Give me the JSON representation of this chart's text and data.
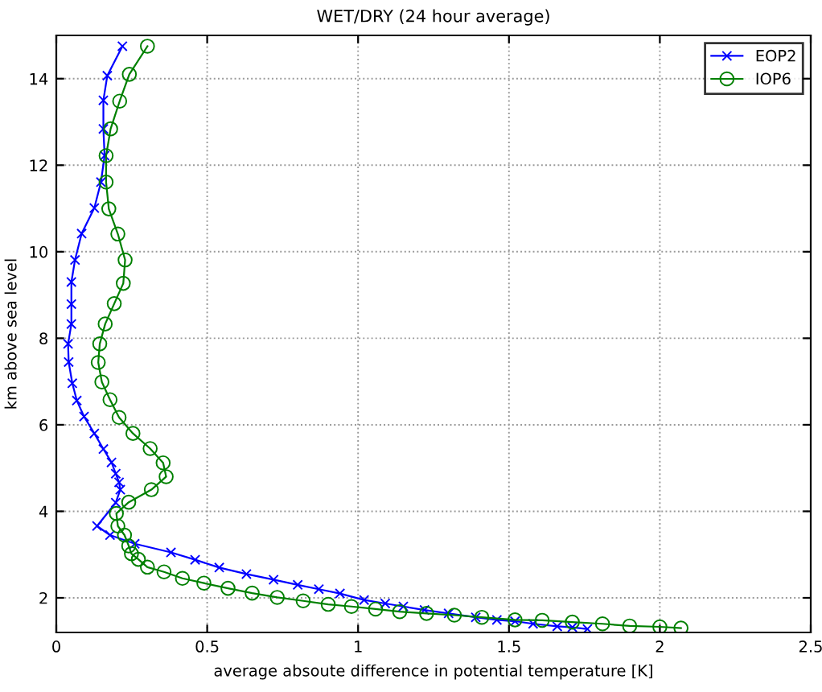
{
  "chart_data": {
    "type": "line",
    "title": "WET/DRY (24 hour average)",
    "xlabel": "average absoute difference in potential temperature [K]",
    "ylabel": "km above sea level",
    "xlim": [
      0,
      2.5
    ],
    "xticks": [
      0,
      0.5,
      1,
      1.5,
      2,
      2.5
    ],
    "ylim": [
      1.2,
      15
    ],
    "yticks": [
      2,
      4,
      6,
      8,
      10,
      12,
      14
    ],
    "grid": true,
    "legend": "top right",
    "series": [
      {
        "name": "EOP2",
        "color": "#0000ff",
        "marker": "cross",
        "x": [
          0.219,
          0.169,
          0.156,
          0.156,
          0.16,
          0.148,
          0.126,
          0.084,
          0.062,
          0.05,
          0.05,
          0.05,
          0.039,
          0.041,
          0.053,
          0.068,
          0.092,
          0.126,
          0.156,
          0.183,
          0.197,
          0.208,
          0.212,
          0.197,
          0.135,
          0.178,
          0.26,
          0.38,
          0.46,
          0.54,
          0.63,
          0.72,
          0.8,
          0.87,
          0.94,
          1.02,
          1.09,
          1.15,
          1.22,
          1.3,
          1.39,
          1.46,
          1.52,
          1.58,
          1.66,
          1.71,
          1.76
        ],
        "values": [
          14.75,
          14.07,
          13.5,
          12.84,
          12.22,
          11.61,
          11.01,
          10.42,
          9.81,
          9.3,
          8.79,
          8.33,
          7.87,
          7.45,
          6.96,
          6.56,
          6.19,
          5.8,
          5.44,
          5.13,
          4.87,
          4.67,
          4.5,
          4.2,
          3.66,
          3.45,
          3.25,
          3.05,
          2.88,
          2.7,
          2.55,
          2.42,
          2.3,
          2.2,
          2.1,
          1.95,
          1.87,
          1.8,
          1.72,
          1.64,
          1.55,
          1.49,
          1.46,
          1.4,
          1.34,
          1.32,
          1.28
        ]
      },
      {
        "name": "IOP6",
        "color": "#008000",
        "marker": "circle",
        "x": [
          0.302,
          0.242,
          0.21,
          0.18,
          0.165,
          0.165,
          0.174,
          0.204,
          0.228,
          0.222,
          0.192,
          0.162,
          0.144,
          0.139,
          0.151,
          0.178,
          0.208,
          0.254,
          0.311,
          0.354,
          0.364,
          0.315,
          0.24,
          0.199,
          0.204,
          0.226,
          0.24,
          0.249,
          0.272,
          0.302,
          0.357,
          0.418,
          0.489,
          0.569,
          0.649,
          0.732,
          0.818,
          0.901,
          0.978,
          1.058,
          1.138,
          1.227,
          1.319,
          1.41,
          1.52,
          1.61,
          1.71,
          1.81,
          1.9,
          2.0,
          2.07
        ],
        "values": [
          14.75,
          14.1,
          13.48,
          12.84,
          12.22,
          11.61,
          10.99,
          10.41,
          9.81,
          9.27,
          8.8,
          8.33,
          7.87,
          7.44,
          6.99,
          6.58,
          6.17,
          5.8,
          5.45,
          5.12,
          4.8,
          4.5,
          4.21,
          3.95,
          3.66,
          3.45,
          3.2,
          3.02,
          2.89,
          2.71,
          2.6,
          2.45,
          2.34,
          2.22,
          2.11,
          2.01,
          1.93,
          1.85,
          1.8,
          1.74,
          1.68,
          1.64,
          1.6,
          1.55,
          1.49,
          1.48,
          1.44,
          1.4,
          1.35,
          1.33,
          1.3
        ]
      }
    ]
  }
}
